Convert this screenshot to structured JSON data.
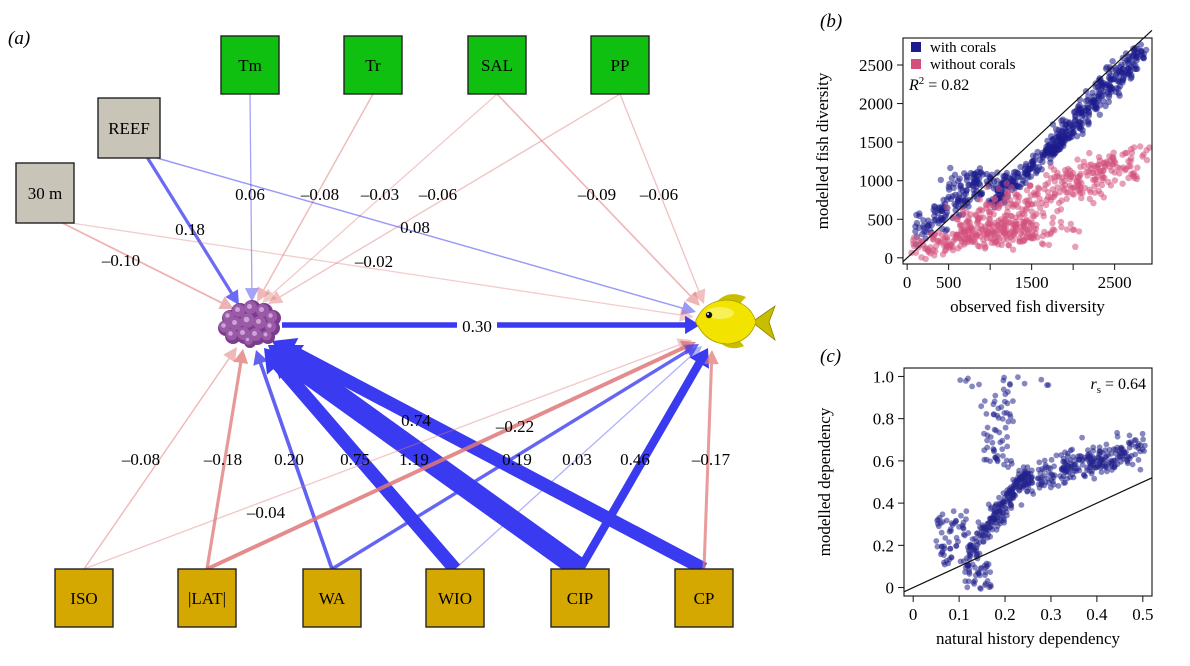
{
  "colors": {
    "positive": "#3a3af0",
    "negative": "#e07878",
    "env_box": "#10c010",
    "site_box": "#c8c4b8",
    "region_box": "#d4a800",
    "with_corals": "#1c1c8c",
    "without_corals": "#d4507c",
    "dependency_points": "#22228c",
    "coral": "#9a5aa8",
    "fish_body": "#f2e400",
    "fish_fin": "#c9bd00"
  },
  "panel_a": {
    "panel_label": "(a)",
    "nodes": [
      {
        "id": "Tm",
        "label": "Tm",
        "group": "env"
      },
      {
        "id": "Tr",
        "label": "Tr",
        "group": "env"
      },
      {
        "id": "SAL",
        "label": "SAL",
        "group": "env"
      },
      {
        "id": "PP",
        "label": "PP",
        "group": "env"
      },
      {
        "id": "REEF",
        "label": "REEF",
        "group": "site"
      },
      {
        "id": "30m",
        "label": "30 m",
        "group": "site"
      },
      {
        "id": "ISO",
        "label": "ISO",
        "group": "region"
      },
      {
        "id": "LAT",
        "label": "|LAT|",
        "group": "region"
      },
      {
        "id": "WA",
        "label": "WA",
        "group": "region"
      },
      {
        "id": "WIO",
        "label": "WIO",
        "group": "region"
      },
      {
        "id": "CIP",
        "label": "CIP",
        "group": "region"
      },
      {
        "id": "CP",
        "label": "CP",
        "group": "region"
      }
    ],
    "targets": [
      {
        "id": "coral",
        "icon": "coral-icon"
      },
      {
        "id": "fish",
        "icon": "fish-icon"
      }
    ],
    "edges": [
      {
        "from": "Tm",
        "to": "coral",
        "value": 0.06,
        "label": "0.06"
      },
      {
        "from": "Tr",
        "to": "coral",
        "value": -0.08,
        "label": "–0.08"
      },
      {
        "from": "SAL",
        "to": "coral",
        "value": -0.03,
        "label": "–0.03"
      },
      {
        "from": "PP",
        "to": "coral",
        "value": -0.06,
        "label": "–0.06"
      },
      {
        "from": "REEF",
        "to": "coral",
        "value": 0.18,
        "label": "0.18"
      },
      {
        "from": "30m",
        "to": "coral",
        "value": -0.1,
        "label": "–0.10"
      },
      {
        "from": "SAL",
        "to": "fish",
        "value": -0.09,
        "label": "–0.09"
      },
      {
        "from": "PP",
        "to": "fish",
        "value": -0.06,
        "label": "–0.06"
      },
      {
        "from": "REEF",
        "to": "fish",
        "value": 0.08,
        "label": "0.08"
      },
      {
        "from": "30m",
        "to": "fish",
        "value": -0.02,
        "label": "–0.02"
      },
      {
        "from": "coral",
        "to": "fish",
        "value": 0.3,
        "label": "0.30"
      },
      {
        "from": "ISO",
        "to": "coral",
        "value": -0.08,
        "label": "–0.08"
      },
      {
        "from": "LAT",
        "to": "coral",
        "value": -0.18,
        "label": "–0.18"
      },
      {
        "from": "WA",
        "to": "coral",
        "value": 0.2,
        "label": "0.20"
      },
      {
        "from": "WIO",
        "to": "coral",
        "value": 0.75,
        "label": "0.75"
      },
      {
        "from": "CIP",
        "to": "coral",
        "value": 1.19,
        "label": "1.19"
      },
      {
        "from": "CP",
        "to": "coral",
        "value": 0.74,
        "label": "0.74"
      },
      {
        "from": "LAT",
        "to": "fish",
        "value": -0.22,
        "label": "–0.22"
      },
      {
        "from": "WA",
        "to": "fish",
        "value": 0.19,
        "label": "0.19"
      },
      {
        "from": "WIO",
        "to": "fish",
        "value": 0.03,
        "label": "0.03"
      },
      {
        "from": "CIP",
        "to": "fish",
        "value": 0.46,
        "label": "0.46"
      },
      {
        "from": "CP",
        "to": "fish",
        "value": -0.17,
        "label": "–0.17"
      },
      {
        "from": "ISO",
        "to": "fish",
        "value": -0.04,
        "label": "–0.04"
      }
    ]
  },
  "chart_data": [
    {
      "type": "scatter",
      "panel_label": "(b)",
      "xlabel": "observed fish diversity",
      "ylabel": "modelled fish diversity",
      "xlim": [
        -50,
        2950
      ],
      "ylim": [
        -80,
        2850
      ],
      "x_ticks": [
        0,
        500,
        1500,
        2500
      ],
      "x_minor_ticks": [
        1000,
        2000
      ],
      "y_ticks": [
        0,
        500,
        1000,
        1500,
        2000,
        2500
      ],
      "grid": false,
      "legend_placement": "top-left",
      "reference_line": {
        "x": [
          -50,
          2950
        ],
        "y": [
          -50,
          2950
        ]
      },
      "stat_label": {
        "prefix": "R",
        "sup": "2",
        "text": " = 0.82"
      },
      "series": [
        {
          "name": "with corals",
          "color": "#1c1c8c",
          "clusters": [
            {
              "x": [
                100,
                900
              ],
              "y": [
                180,
                1380
              ],
              "slope": 0.55,
              "n": 110
            },
            {
              "x": [
                500,
                1400
              ],
              "y": [
                900,
                1300
              ],
              "slope": 0.05,
              "n": 70
            },
            {
              "x": [
                1000,
                1900
              ],
              "y": [
                700,
                1600
              ],
              "slope": 0.95,
              "n": 140
            },
            {
              "x": [
                1700,
                2850
              ],
              "y": [
                1400,
                2700
              ],
              "slope": 1.05,
              "n": 260
            }
          ],
          "count_approx": 580
        },
        {
          "name": "without corals",
          "color": "#d4507c",
          "clusters": [
            {
              "x": [
                50,
                1500
              ],
              "y": [
                20,
                720
              ],
              "slope": 0.4,
              "n": 180
            },
            {
              "x": [
                600,
                2800
              ],
              "y": [
                200,
                1750
              ],
              "slope": 0.6,
              "n": 320
            },
            {
              "x": [
                1200,
                2100
              ],
              "y": [
                150,
                450
              ],
              "slope": 0.0,
              "n": 40
            }
          ],
          "count_approx": 540
        }
      ]
    },
    {
      "type": "scatter",
      "panel_label": "(c)",
      "xlabel": "natural history dependency",
      "ylabel": "modelled dependency",
      "xlim": [
        -0.02,
        0.52
      ],
      "ylim": [
        -0.04,
        1.04
      ],
      "x_ticks": [
        0,
        0.1,
        0.2,
        0.3,
        0.4,
        0.5
      ],
      "x_tick_labels": [
        "0",
        "0.1",
        "0.2",
        "0.3",
        "0.4",
        "0.5"
      ],
      "y_ticks": [
        0,
        0.2,
        0.4,
        0.6,
        0.8,
        1.0
      ],
      "y_tick_labels": [
        "0",
        "0.2",
        "0.4",
        "0.6",
        "0.8",
        "1.0"
      ],
      "grid": false,
      "reference_line": {
        "x": [
          -0.02,
          0.52
        ],
        "y": [
          -0.02,
          0.52
        ]
      },
      "stat_label": {
        "prefix": "r",
        "sub": "s",
        "text": " = 0.64"
      },
      "series": [
        {
          "name": "",
          "color": "#22228c",
          "clusters": [
            {
              "x": [
                0.05,
                0.12
              ],
              "y": [
                0.12,
                0.35
              ],
              "slope": 0.0,
              "n": 60
            },
            {
              "x": [
                0.12,
                0.25
              ],
              "y": [
                0.15,
                0.55
              ],
              "slope": 1.2,
              "n": 200
            },
            {
              "x": [
                0.15,
                0.22
              ],
              "y": [
                0.55,
                0.92
              ],
              "slope": 0.0,
              "n": 60
            },
            {
              "x": [
                0.24,
                0.5
              ],
              "y": [
                0.45,
                0.8
              ],
              "slope": 0.5,
              "n": 260
            },
            {
              "x": [
                0.11,
                0.17
              ],
              "y": [
                0.0,
                0.12
              ],
              "slope": 0.0,
              "n": 40
            },
            {
              "x": [
                0.08,
                0.3
              ],
              "y": [
                0.95,
                1.0
              ],
              "slope": 0.0,
              "n": 14
            }
          ],
          "count_approx": 640
        }
      ]
    }
  ]
}
